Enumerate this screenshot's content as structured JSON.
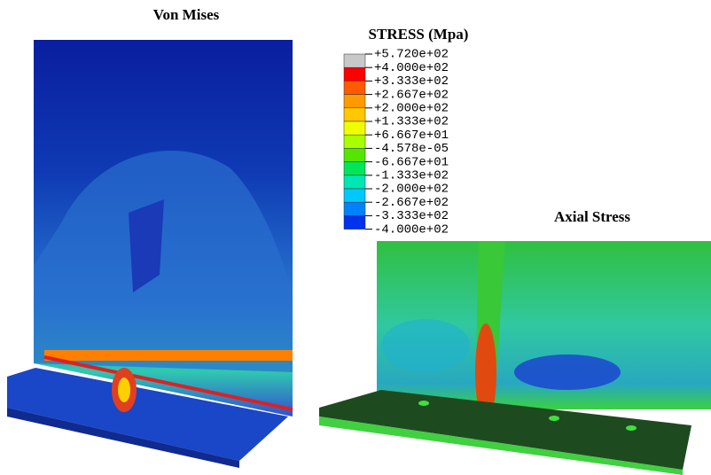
{
  "figure": {
    "left_title": "Von Mises",
    "right_title": "Axial Stress",
    "legend": {
      "title": "STRESS (Mpa)",
      "labels": [
        "+5.720e+02",
        "+4.000e+02",
        "+3.333e+02",
        "+2.667e+02",
        "+2.000e+02",
        "+1.333e+02",
        "+6.667e+01",
        "-4.578e-05",
        "-6.667e+01",
        "-1.333e+02",
        "-2.000e+02",
        "-2.667e+02",
        "-3.333e+02",
        "-4.000e+02"
      ],
      "colors": [
        "#c8c8c8",
        "#ff0000",
        "#ff5a00",
        "#ff9a00",
        "#ffc800",
        "#f0ff00",
        "#a8ff00",
        "#55e600",
        "#00e65a",
        "#00e6b4",
        "#00c8ff",
        "#0082ff",
        "#0032f0",
        "#0000c8"
      ]
    }
  }
}
